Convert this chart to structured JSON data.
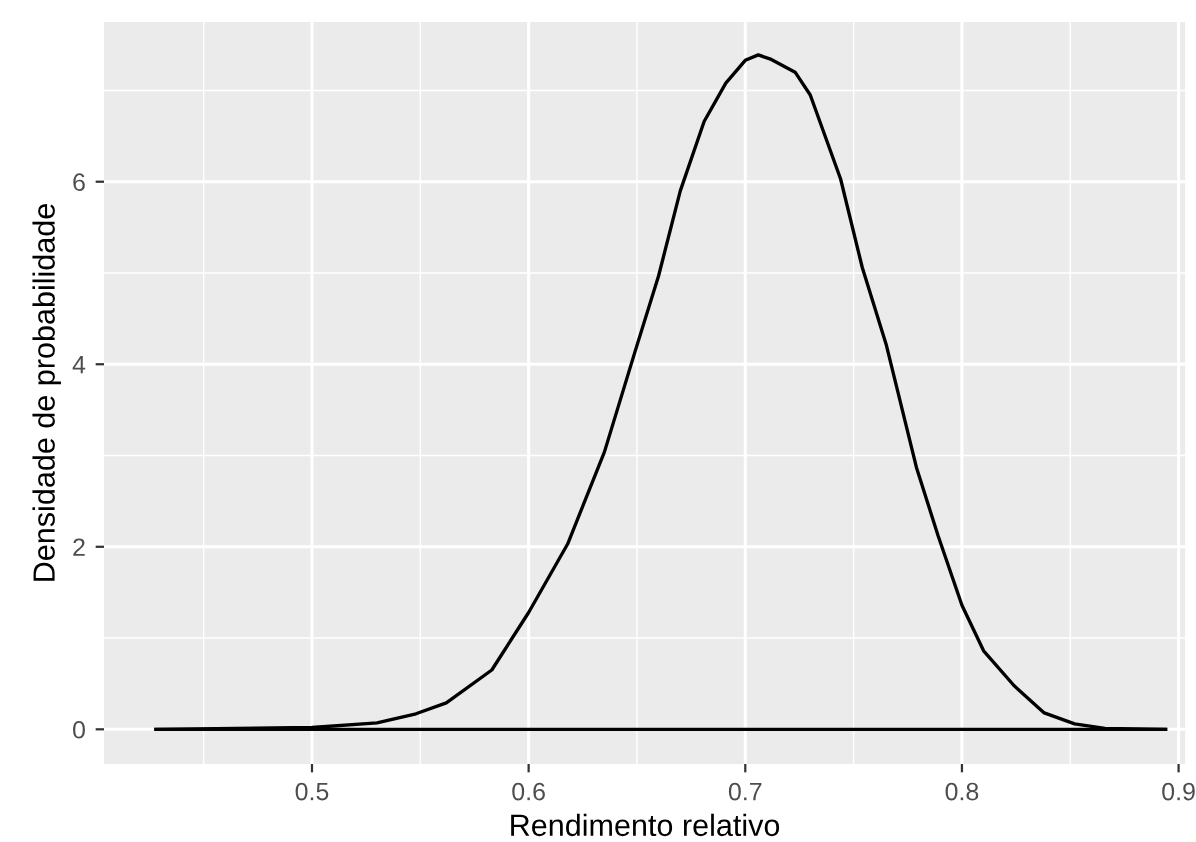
{
  "chart_data": {
    "type": "line",
    "xlabel": "Rendimento relativo",
    "ylabel": "Densidade de probabilidade",
    "x": [
      0.428,
      0.5,
      0.53,
      0.548,
      0.562,
      0.583,
      0.6,
      0.618,
      0.635,
      0.649,
      0.66,
      0.67,
      0.681,
      0.691,
      0.7,
      0.706,
      0.712,
      0.723,
      0.73,
      0.737,
      0.744,
      0.754,
      0.765,
      0.779,
      0.789,
      0.8,
      0.81,
      0.824,
      0.838,
      0.852,
      0.866,
      0.894
    ],
    "series": [
      {
        "color": "#000000",
        "values": [
          0,
          0.02,
          0.07,
          0.17,
          0.29,
          0.65,
          1.28,
          2.03,
          3.04,
          4.13,
          4.97,
          5.9,
          6.66,
          7.08,
          7.33,
          7.39,
          7.34,
          7.2,
          6.95,
          6.49,
          6.03,
          5.06,
          4.22,
          2.87,
          2.12,
          1.36,
          0.86,
          0.48,
          0.18,
          0.06,
          0.01,
          0
        ]
      },
      {
        "color": "#000000",
        "x": [
          0.428,
          0.894
        ],
        "values": [
          0,
          0
        ]
      }
    ],
    "xlim": [
      0.404,
      0.903
    ],
    "ylim": [
      -0.38,
      7.75
    ],
    "xticks": [
      0.5,
      0.6,
      0.7,
      0.8,
      0.9
    ],
    "yticks": [
      0,
      2,
      4,
      6
    ],
    "grid": true
  }
}
